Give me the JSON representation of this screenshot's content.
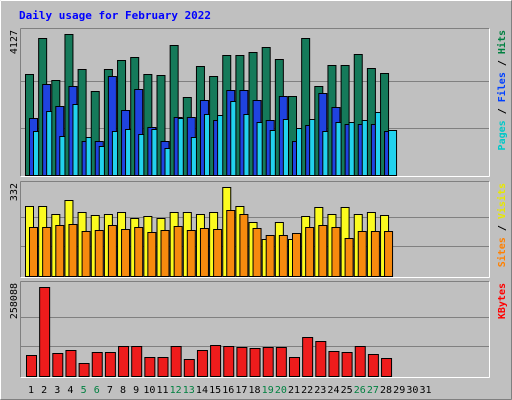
{
  "chart_data": {
    "type": "bar",
    "title": "Daily usage for February 2022",
    "days": [
      "1",
      "2",
      "3",
      "4",
      "5",
      "6",
      "7",
      "8",
      "9",
      "10",
      "11",
      "12",
      "13",
      "14",
      "15",
      "16",
      "17",
      "18",
      "19",
      "20",
      "21",
      "22",
      "23",
      "24",
      "25",
      "26",
      "27",
      "28",
      "29",
      "30",
      "31"
    ],
    "weekend_days": [
      "5",
      "6",
      "12",
      "13",
      "19",
      "20",
      "26",
      "27"
    ],
    "panels": [
      {
        "name": "pages-files-hits",
        "max_label": "4127",
        "ymax": 4127,
        "legend": [
          {
            "text": "Pages",
            "color": "#00c8c8"
          },
          {
            "text": " / ",
            "color": "#000000"
          },
          {
            "text": "Files",
            "color": "#0040ff"
          },
          {
            "text": " / ",
            "color": "#000000"
          },
          {
            "text": "Hits",
            "color": "#008040"
          }
        ],
        "series": [
          {
            "name": "Hits",
            "color": "#157a5a",
            "values": [
              2950,
              3997,
              2780,
              4127,
              3100,
              2460,
              3097,
              3370,
              3468,
              2969,
              2930,
              3800,
              2290,
              3200,
              2900,
              3500,
              3500,
              3600,
              3740,
              3400,
              2300,
              4000,
              2600,
              3210,
              3210,
              3550,
              3140,
              3000,
              0,
              0,
              0
            ]
          },
          {
            "name": "Files",
            "color": "#1f43e0",
            "values": [
              1680,
              2660,
              2020,
              2600,
              1000,
              1000,
              2900,
              1900,
              2520,
              1400,
              1000,
              1700,
              1700,
              2200,
              1600,
              2500,
              2500,
              2200,
              1600,
              2300,
              1000,
              1450,
              2400,
              2000,
              1500,
              1500,
              1500,
              1300,
              0,
              0,
              0
            ]
          },
          {
            "name": "Pages",
            "color": "#22d2ee",
            "values": [
              1290,
              1870,
              1150,
              2070,
              1100,
              850,
              1300,
              1350,
              1200,
              1350,
              790,
              1680,
              1100,
              1800,
              1750,
              2170,
              1800,
              1540,
              1330,
              1650,
              1370,
              1650,
              1290,
              1550,
              1560,
              1600,
              1850,
              1320,
              0,
              0,
              0
            ]
          }
        ]
      },
      {
        "name": "sites-visits",
        "max_label": "332",
        "ymax": 332,
        "legend": [
          {
            "text": "Sites",
            "color": "#ff8000"
          },
          {
            "text": " / ",
            "color": "#000000"
          },
          {
            "text": "Visits",
            "color": "#e8e800"
          }
        ],
        "series": [
          {
            "name": "Visits",
            "color": "#fbfb1f",
            "values": [
              260,
              260,
              230,
              282,
              237,
              227,
              230,
              237,
              217,
              222,
              217,
              237,
              237,
              232,
              237,
              332,
              261,
              200,
              137,
              201,
              137,
              222,
              257,
              232,
              257,
              232,
              237,
              227,
              0,
              0,
              0
            ]
          },
          {
            "name": "Sites",
            "color": "#f78a0e",
            "values": [
              184,
              181,
              190,
              195,
              167,
              170,
              190,
              175,
              184,
              165,
              170,
              185,
              170,
              180,
              175,
              248,
              230,
              179,
              152,
              152,
              162,
              181,
              190,
              182,
              140,
              167,
              167,
              167,
              0,
              0,
              0
            ]
          }
        ]
      },
      {
        "name": "kbytes",
        "max_label": "258088",
        "ymax": 258088,
        "legend": [
          {
            "text": "KBytes",
            "color": "#ff0000"
          }
        ],
        "series": [
          {
            "name": "KBytes",
            "color": "#ee1c1c",
            "values": [
              60000,
              258088,
              68000,
              74000,
              37000,
              71000,
              69000,
              88000,
              86000,
              55000,
              56000,
              88000,
              50000,
              74000,
              91000,
              88000,
              84000,
              82000,
              83000,
              83000,
              56000,
              114000,
              101000,
              73000,
              69000,
              87000,
              65000,
              53000,
              0,
              0,
              0
            ]
          }
        ]
      }
    ]
  }
}
